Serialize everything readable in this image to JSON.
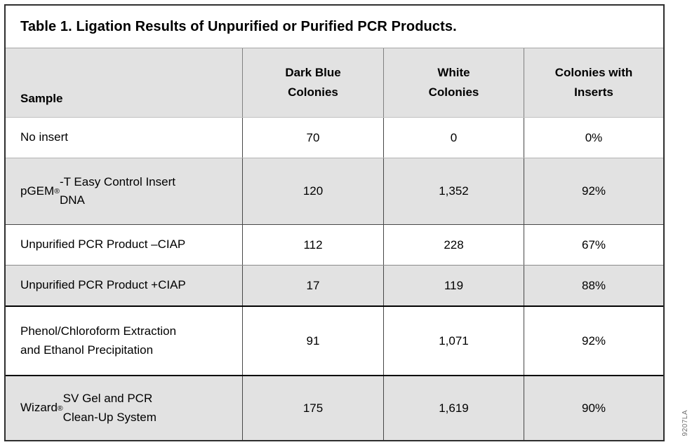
{
  "title": "Table 1. Ligation Results of Unpurified or Purified PCR Products.",
  "table": {
    "columns": [
      {
        "label": "Sample"
      },
      {
        "label": "Dark Blue\nColonies"
      },
      {
        "label": "White\nColonies"
      },
      {
        "label": "Colonies with\nInserts"
      }
    ],
    "rows": [
      {
        "sample": "No insert",
        "dark_blue_colonies": "70",
        "white_colonies": "0",
        "colonies_with_inserts": "0%"
      },
      {
        "sample": "pGEM®-T Easy Control Insert\nDNA",
        "dark_blue_colonies": "120",
        "white_colonies": "1,352",
        "colonies_with_inserts": "92%"
      },
      {
        "sample": "Unpurified PCR Product –CIAP",
        "dark_blue_colonies": "112",
        "white_colonies": "228",
        "colonies_with_inserts": "67%"
      },
      {
        "sample": "Unpurified PCR Product +CIAP",
        "dark_blue_colonies": "17",
        "white_colonies": "119",
        "colonies_with_inserts": "88%"
      },
      {
        "sample": "Phenol/Chloroform Extraction\nand Ethanol Precipitation",
        "dark_blue_colonies": "91",
        "white_colonies": "1,071",
        "colonies_with_inserts": "92%"
      },
      {
        "sample": "Wizard® SV Gel and PCR\nClean-Up System",
        "dark_blue_colonies": "175",
        "white_colonies": "1,619",
        "colonies_with_inserts": "90%"
      }
    ]
  },
  "watermark": "9207LA",
  "colors": {
    "shaded_row": "#e2e2e2",
    "unshaded_row": "#ffffff",
    "border_dark": "#000000",
    "text": "#000000"
  }
}
